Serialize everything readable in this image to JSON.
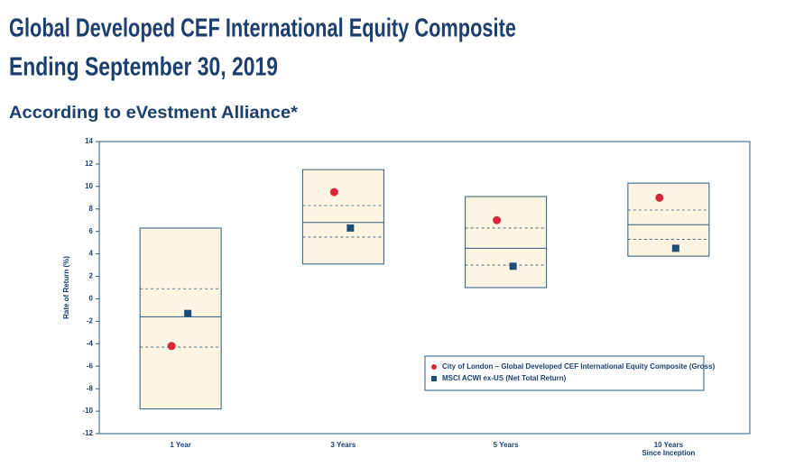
{
  "chart_data": {
    "type": "range-box",
    "title": "Global Developed CEF International Equity Composite",
    "subtitle": "Ending September 30, 2019",
    "source_note": "According to eVestment Alliance*",
    "y_label": "Rate of Return (%)",
    "categories": [
      "1 Year",
      "3 Years",
      "5 Years",
      "10 Years\nSince Inception"
    ],
    "ranges": {
      "high": [
        6.3,
        11.5,
        9.1,
        10.3
      ],
      "q3": [
        0.9,
        8.3,
        6.3,
        7.9
      ],
      "median": [
        -1.6,
        6.8,
        4.5,
        6.6
      ],
      "q1": [
        -4.3,
        5.5,
        3.0,
        5.3
      ],
      "low": [
        -9.8,
        3.1,
        1.0,
        3.8
      ],
      "fill": "#fdf5e1",
      "stroke": "#2b5a7d"
    },
    "series": [
      {
        "name": "City of London – Global Developed CEF International Equity Composite (Gross)",
        "color": "#d62839",
        "marker": "circle",
        "values": [
          -4.2,
          9.5,
          7.0,
          9.0
        ]
      },
      {
        "name": "MSCI ACWI ex-US (Net Total Return)",
        "color": "#1b4f7a",
        "marker": "square",
        "values": [
          -1.3,
          6.3,
          2.9,
          4.5
        ]
      }
    ],
    "ylim": [
      -12,
      14
    ],
    "yticks": [
      -12,
      -10,
      -8,
      -6,
      -4,
      -2,
      0,
      2,
      4,
      6,
      8,
      10,
      12,
      14
    ],
    "legend": "lower-right"
  }
}
